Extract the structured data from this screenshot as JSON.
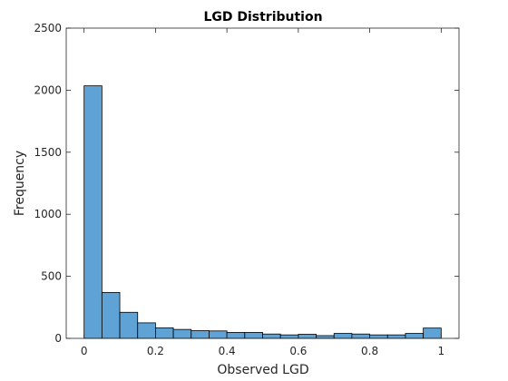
{
  "chart_data": {
    "type": "histogram",
    "title": "LGD Distribution",
    "xlabel": "Observed LGD",
    "ylabel": "Frequency",
    "xlim": [
      -0.05,
      1.05
    ],
    "ylim": [
      0,
      2500
    ],
    "xticks": [
      0,
      0.2,
      0.4,
      0.6,
      0.8,
      1
    ],
    "xtick_labels": [
      "0",
      "0.2",
      "0.4",
      "0.6",
      "0.8",
      "1"
    ],
    "yticks": [
      0,
      500,
      1000,
      1500,
      2000,
      2500
    ],
    "ytick_labels": [
      "0",
      "500",
      "1000",
      "1500",
      "2000",
      "2500"
    ],
    "bin_start": 0,
    "bin_width": 0.05,
    "values": [
      2035,
      370,
      210,
      125,
      85,
      72,
      62,
      60,
      48,
      48,
      35,
      28,
      33,
      22,
      40,
      35,
      28,
      28,
      40,
      83
    ],
    "bar_color": "#5fa2d5",
    "grid": false,
    "legend": "none"
  }
}
